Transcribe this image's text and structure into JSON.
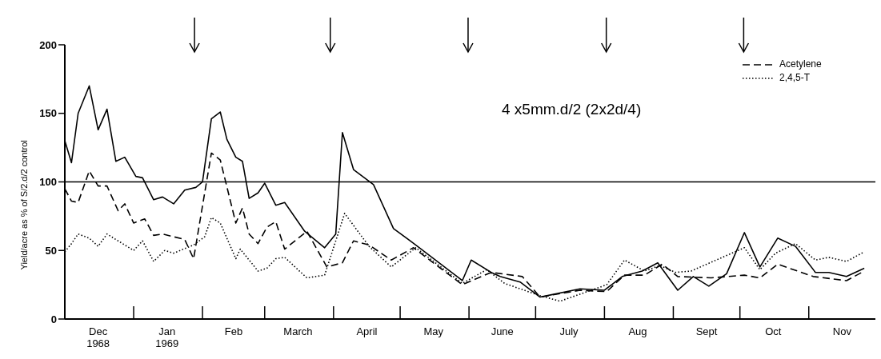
{
  "chart_data": {
    "type": "line",
    "ylabel": "Yield/acre as % of S/2.d/2 control",
    "annotations": [
      "4 x5mm.d/2 (2x2d/4)"
    ],
    "xlim": [
      "1968-12-01",
      "1969-12-01"
    ],
    "ylim": [
      0,
      200
    ],
    "yticks": [
      0,
      50,
      100,
      150,
      200
    ],
    "xticks": [
      {
        "value": "1968-12-16",
        "label": "Dec\n1968"
      },
      {
        "value": "1969-01-01",
        "label": null
      },
      {
        "value": "1969-01-16",
        "label": "Jan\n1969"
      },
      {
        "value": "1969-02-01",
        "label": null
      },
      {
        "value": "1969-02-15",
        "label": "Feb"
      },
      {
        "value": "1969-03-01",
        "label": null
      },
      {
        "value": "1969-03-16",
        "label": "March"
      },
      {
        "value": "1969-04-01",
        "label": null
      },
      {
        "value": "1969-04-16",
        "label": "April"
      },
      {
        "value": "1969-05-01",
        "label": null
      },
      {
        "value": "1969-05-16",
        "label": "May"
      },
      {
        "value": "1969-06-01",
        "label": null
      },
      {
        "value": "1969-06-16",
        "label": "June"
      },
      {
        "value": "1969-07-01",
        "label": null
      },
      {
        "value": "1969-07-16",
        "label": "July"
      },
      {
        "value": "1969-08-01",
        "label": null
      },
      {
        "value": "1969-08-16",
        "label": "Aug"
      },
      {
        "value": "1969-09-01",
        "label": null
      },
      {
        "value": "1969-09-16",
        "label": "Sept"
      },
      {
        "value": "1969-10-01",
        "label": null
      },
      {
        "value": "1969-10-16",
        "label": "Oct"
      },
      {
        "value": "1969-11-01",
        "label": null
      },
      {
        "value": "1969-11-16",
        "label": "Nov"
      }
    ],
    "ref_lines": [
      {
        "axis": "y",
        "value": 100,
        "color": "#000000"
      }
    ],
    "legend": "top right",
    "marker": "none",
    "series": [
      {
        "color": "#000000",
        "line_style": "solid",
        "x": [
          "1968-12-01",
          "1968-12-04",
          "1968-12-07",
          "1968-12-12",
          "1968-12-16",
          "1968-12-20",
          "1968-12-24",
          "1968-12-28",
          "1969-01-02",
          "1969-01-05",
          "1969-01-10",
          "1969-01-14",
          "1969-01-19",
          "1969-01-24",
          "1969-01-29",
          "1969-02-01",
          "1969-02-05",
          "1969-02-09",
          "1969-02-12",
          "1969-02-16",
          "1969-02-19",
          "1969-02-22",
          "1969-02-26",
          "1969-03-01",
          "1969-03-06",
          "1969-03-10",
          "1969-03-19",
          "1969-03-22",
          "1969-03-28",
          "1969-04-02",
          "1969-04-05",
          "1969-04-10",
          "1969-04-19",
          "1969-04-28",
          "1969-05-08",
          "1969-05-29",
          "1969-06-02",
          "1969-06-11",
          "1969-06-15",
          "1969-06-24",
          "1969-07-03",
          "1969-07-06",
          "1969-07-21",
          "1969-08-01",
          "1969-08-09",
          "1969-08-18",
          "1969-08-25",
          "1969-09-03",
          "1969-09-10",
          "1969-09-17",
          "1969-09-25",
          "1969-10-03",
          "1969-10-10",
          "1969-10-18",
          "1969-10-26",
          "1969-11-04",
          "1969-11-10",
          "1969-11-18",
          "1969-11-26"
        ],
        "values": [
          130,
          114,
          150,
          170,
          138,
          153,
          115,
          118,
          104,
          103,
          87,
          89,
          84,
          94,
          96,
          100,
          146,
          151,
          131,
          118,
          115,
          88,
          92,
          99,
          83,
          85,
          64,
          60,
          52,
          62,
          136,
          109,
          98,
          66,
          54,
          28,
          43,
          34,
          31,
          27,
          16,
          17,
          22,
          21,
          31,
          35,
          41,
          21,
          31,
          24,
          33,
          63,
          38,
          59,
          53,
          34,
          34,
          31,
          37
        ]
      },
      {
        "name": "Acetylene",
        "color": "#000000",
        "line_style": "dashed",
        "x": [
          "1968-12-01",
          "1968-12-04",
          "1968-12-07",
          "1968-12-12",
          "1968-12-16",
          "1968-12-20",
          "1968-12-25",
          "1968-12-28",
          "1969-01-01",
          "1969-01-06",
          "1969-01-10",
          "1969-01-14",
          "1969-01-19",
          "1969-01-24",
          "1969-01-28",
          "1969-02-05",
          "1969-02-09",
          "1969-02-16",
          "1969-02-19",
          "1969-02-22",
          "1969-02-26",
          "1969-03-02",
          "1969-03-06",
          "1969-03-10",
          "1969-03-20",
          "1969-03-29",
          "1969-04-05",
          "1969-04-10",
          "1969-04-17",
          "1969-04-27",
          "1969-05-07",
          "1969-05-29",
          "1969-06-11",
          "1969-06-25",
          "1969-07-03",
          "1969-07-21",
          "1969-08-02",
          "1969-08-10",
          "1969-08-19",
          "1969-08-27",
          "1969-09-03",
          "1969-09-18",
          "1969-10-03",
          "1969-10-10",
          "1969-10-18",
          "1969-11-03",
          "1969-11-18",
          "1969-11-26"
        ],
        "values": [
          95,
          86,
          85,
          108,
          97,
          97,
          79,
          84,
          70,
          73,
          61,
          62,
          60,
          58,
          44,
          121,
          116,
          70,
          81,
          62,
          55,
          67,
          71,
          51,
          64,
          38,
          41,
          57,
          54,
          43,
          52,
          25,
          34,
          31,
          16,
          21,
          20,
          32,
          32,
          40,
          31,
          30,
          32,
          30,
          40,
          31,
          28,
          35
        ]
      },
      {
        "name": "2,4,5-T",
        "color": "#000000",
        "line_style": "dotted",
        "x": [
          "1968-12-01",
          "1968-12-04",
          "1968-12-07",
          "1968-12-12",
          "1968-12-16",
          "1968-12-20",
          "1969-01-01",
          "1969-01-05",
          "1969-01-10",
          "1969-01-15",
          "1969-01-19",
          "1969-01-28",
          "1969-02-02",
          "1969-02-05",
          "1969-02-09",
          "1969-02-16",
          "1969-02-18",
          "1969-02-26",
          "1969-03-02",
          "1969-03-06",
          "1969-03-10",
          "1969-03-20",
          "1969-03-28",
          "1969-04-06",
          "1969-04-17",
          "1969-04-27",
          "1969-05-08",
          "1969-05-29",
          "1969-06-09",
          "1969-06-17",
          "1969-07-03",
          "1969-07-12",
          "1969-08-02",
          "1969-08-10",
          "1969-08-19",
          "1969-08-26",
          "1969-09-02",
          "1969-09-09",
          "1969-10-03",
          "1969-10-10",
          "1969-10-17",
          "1969-10-26",
          "1969-11-04",
          "1969-11-10",
          "1969-11-18",
          "1969-11-26"
        ],
        "values": [
          49,
          55,
          62,
          59,
          53,
          62,
          50,
          57,
          42,
          50,
          48,
          54,
          60,
          74,
          70,
          44,
          51,
          35,
          37,
          44,
          45,
          30,
          32,
          77,
          53,
          38,
          52,
          26,
          36,
          26,
          17,
          13,
          25,
          43,
          35,
          39,
          34,
          35,
          52,
          36,
          48,
          55,
          43,
          45,
          42,
          49
        ]
      }
    ]
  }
}
